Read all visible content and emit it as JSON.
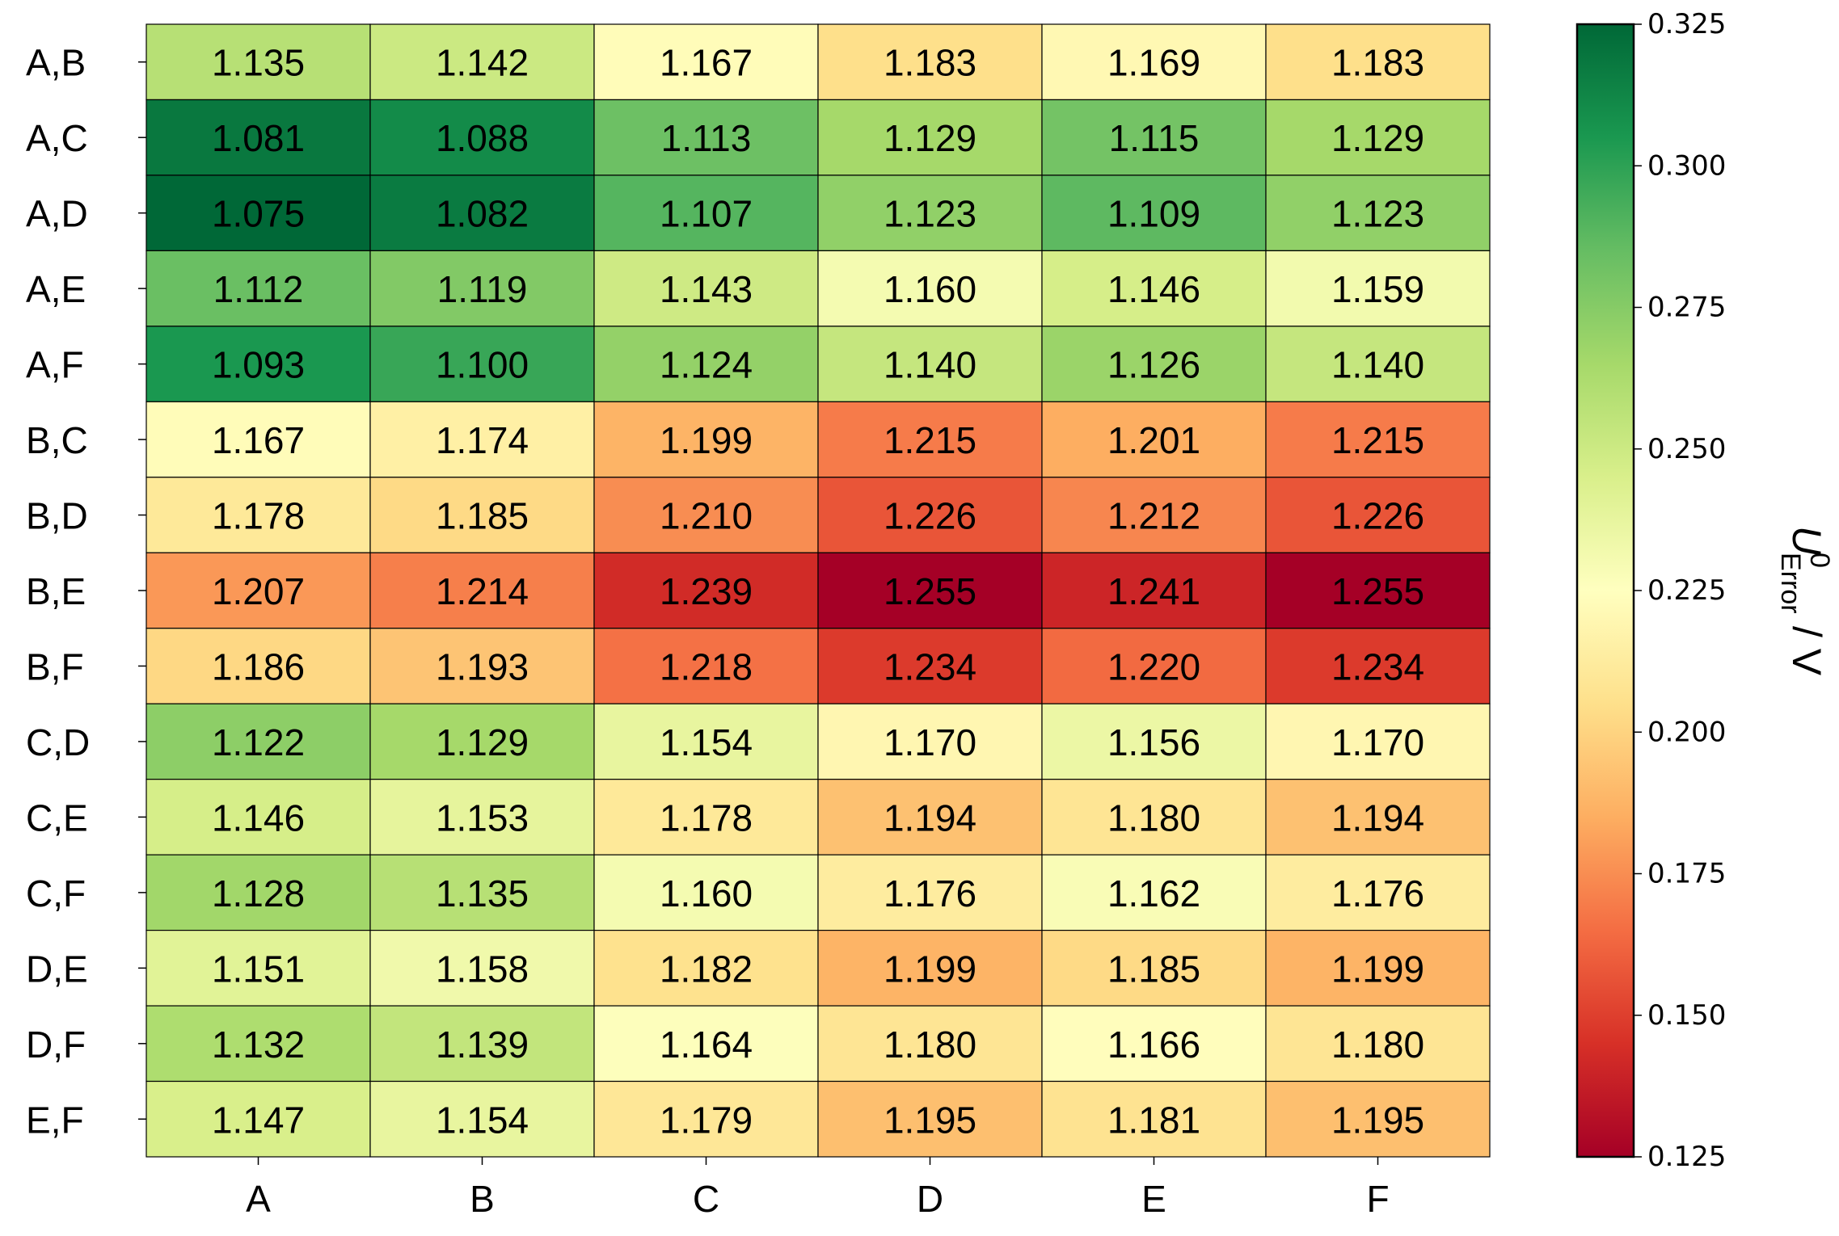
{
  "chart_data": {
    "type": "heatmap",
    "title": "",
    "xlabel": "",
    "ylabel": "",
    "x_categories": [
      "A",
      "B",
      "C",
      "D",
      "E",
      "F"
    ],
    "y_categories": [
      "A,B",
      "A,C",
      "A,D",
      "A,E",
      "A,F",
      "B,C",
      "B,D",
      "B,E",
      "B,F",
      "C,D",
      "C,E",
      "C,F",
      "D,E",
      "D,F",
      "E,F"
    ],
    "values": [
      [
        1.135,
        1.142,
        1.167,
        1.183,
        1.169,
        1.183
      ],
      [
        1.081,
        1.088,
        1.113,
        1.129,
        1.115,
        1.129
      ],
      [
        1.075,
        1.082,
        1.107,
        1.123,
        1.109,
        1.123
      ],
      [
        1.112,
        1.119,
        1.143,
        1.16,
        1.146,
        1.159
      ],
      [
        1.093,
        1.1,
        1.124,
        1.14,
        1.126,
        1.14
      ],
      [
        1.167,
        1.174,
        1.199,
        1.215,
        1.201,
        1.215
      ],
      [
        1.178,
        1.185,
        1.21,
        1.226,
        1.212,
        1.226
      ],
      [
        1.207,
        1.214,
        1.239,
        1.255,
        1.241,
        1.255
      ],
      [
        1.186,
        1.193,
        1.218,
        1.234,
        1.22,
        1.234
      ],
      [
        1.122,
        1.129,
        1.154,
        1.17,
        1.156,
        1.17
      ],
      [
        1.146,
        1.153,
        1.178,
        1.194,
        1.18,
        1.194
      ],
      [
        1.128,
        1.135,
        1.16,
        1.176,
        1.162,
        1.176
      ],
      [
        1.151,
        1.158,
        1.182,
        1.199,
        1.185,
        1.199
      ],
      [
        1.132,
        1.139,
        1.164,
        1.18,
        1.166,
        1.18
      ],
      [
        1.147,
        1.154,
        1.179,
        1.195,
        1.181,
        1.195
      ]
    ],
    "value_decimals": 3,
    "colorbar": {
      "colormap": "RdYlGn",
      "range": [
        0.125,
        0.325
      ],
      "ticks": [
        0.125,
        0.15,
        0.175,
        0.2,
        0.225,
        0.25,
        0.275,
        0.3,
        0.325
      ],
      "tick_labels": [
        "0.125",
        "0.150",
        "0.175",
        "0.200",
        "0.225",
        "0.250",
        "0.275",
        "0.300",
        "0.325"
      ],
      "label": {
        "main": "U",
        "superscript": "0",
        "subscript": "Error",
        "suffix": "/ V"
      }
    },
    "color_stops": [
      "#a50026",
      "#d73027",
      "#f46d43",
      "#fdae61",
      "#fee08b",
      "#ffffbf",
      "#d9ef8b",
      "#a6d96a",
      "#66bd63",
      "#1a9850",
      "#006837"
    ],
    "grid": true,
    "legend": "colorbar-right"
  }
}
